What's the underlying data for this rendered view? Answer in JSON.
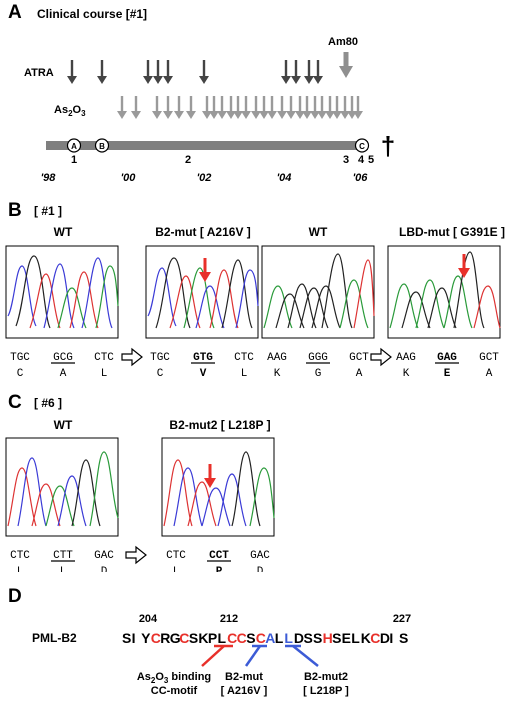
{
  "panelA": {
    "letter": "A",
    "title": "Clinical course [#1]",
    "atra_label": "ATRA",
    "as2o3_label_main": "As",
    "as2o3_label_sub1": "2",
    "as2o3_label_mid": "O",
    "as2o3_label_sub2": "3",
    "am80_label": "Am80",
    "markers": [
      "A",
      "B",
      "C"
    ],
    "timepoints": [
      "1",
      "2",
      "3",
      "4",
      "5"
    ],
    "years": [
      "'98",
      "'00",
      "'02",
      "'04",
      "'06"
    ],
    "death_symbol": "†",
    "colors": {
      "timeline": "#7f7f7f",
      "atra_arrow": "#444444",
      "as2o3_arrow": "#9a9a9a",
      "am80_arrow": "#8f8f8f"
    }
  },
  "panelB": {
    "letter": "B",
    "case": "[ #1 ]",
    "chrom": [
      {
        "title": "WT",
        "codons": [
          "TGC",
          "GCG",
          "CTC"
        ],
        "aa": [
          "C",
          "A",
          "L"
        ]
      },
      {
        "title": "B2-mut [ A216V ]",
        "codons": [
          "TGC",
          "GTG",
          "CTC"
        ],
        "aa": [
          "C",
          "V",
          "L"
        ]
      },
      {
        "title": "WT",
        "codons": [
          "AAG",
          "GGG",
          "GCT"
        ],
        "aa": [
          "K",
          "G",
          "A"
        ]
      },
      {
        "title": "LBD-mut [ G391E ]",
        "codons": [
          "AAG",
          "GAG",
          "GCT"
        ],
        "aa": [
          "K",
          "E",
          "A"
        ]
      }
    ]
  },
  "panelC": {
    "letter": "C",
    "case": "[ #6 ]",
    "chrom": [
      {
        "title": "WT",
        "codons": [
          "CTC",
          "CTT",
          "GAC"
        ],
        "aa": [
          "L",
          "L",
          "D"
        ]
      },
      {
        "title": "B2-mut2 [ L218P ]",
        "codons": [
          "CTC",
          "CCT",
          "GAC"
        ],
        "aa": [
          "L",
          "P",
          "D"
        ]
      }
    ]
  },
  "panelD": {
    "letter": "D",
    "protein_label": "PML-B2",
    "positions": [
      "204",
      "212",
      "227"
    ],
    "sequence": "SIYCRGCSKPLCCSCALLDSSHSELKCDIS",
    "annotations": {
      "ccmotif_line1": "As",
      "ccmotif_sub1": "2",
      "ccmotif_mid": "O",
      "ccmotif_sub2": "3",
      "ccmotif_tail": " binding",
      "ccmotif_line2": "CC-motif",
      "b2mut_line1": "B2-mut",
      "b2mut_line2": "[ A216V ]",
      "b2mut2_line1": "B2-mut2",
      "b2mut2_line2": "[ L218P ]"
    },
    "colors": {
      "red": "#e8302a",
      "blue": "#3c5bd6",
      "black": "#000000"
    }
  }
}
